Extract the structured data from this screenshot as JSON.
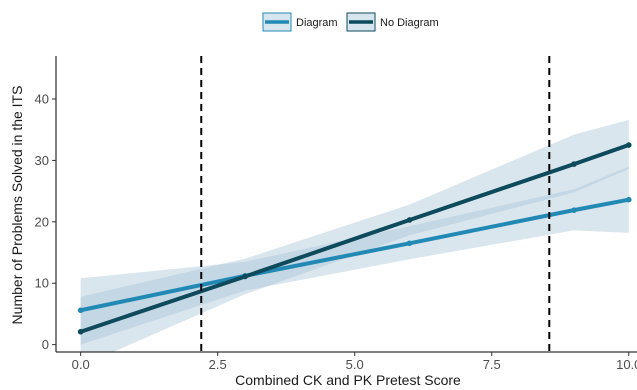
{
  "chart_data": {
    "type": "line",
    "xlabel": "Combined CK and PK Pretest Score",
    "ylabel": "Number of Problems Solved in the ITS",
    "xlim": [
      -0.45,
      10.15
    ],
    "ylim": [
      -1.2,
      47.0
    ],
    "x_ticks": [
      0.0,
      2.5,
      5.0,
      7.5,
      10.0
    ],
    "x_tick_labels": [
      "0.0",
      "2.5",
      "5.0",
      "7.5",
      "10.0"
    ],
    "y_ticks": [
      0,
      10,
      20,
      30,
      40
    ],
    "y_tick_labels": [
      "0",
      "10",
      "20",
      "30",
      "40"
    ],
    "grid": false,
    "legend_position": "top",
    "reference_lines_x": [
      2.2,
      8.55
    ],
    "series": [
      {
        "name": "Diagram",
        "color": "#2189b4",
        "x": [
          0.0,
          3.0,
          6.0,
          9.0,
          10.0
        ],
        "y": [
          5.6,
          11.2,
          16.5,
          21.9,
          23.6
        ],
        "ci_lower": [
          0.0,
          8.8,
          13.9,
          18.6,
          18.2
        ],
        "ci_upper": [
          10.8,
          13.5,
          19.3,
          25.3,
          29.0
        ]
      },
      {
        "name": "No Diagram",
        "color": "#0c4a5c",
        "x": [
          0.0,
          3.0,
          6.0,
          9.0,
          10.0
        ],
        "y": [
          2.1,
          11.1,
          20.3,
          29.4,
          32.5
        ],
        "ci_lower": [
          -3.5,
          8.2,
          17.8,
          24.8,
          28.6
        ],
        "ci_upper": [
          7.8,
          14.0,
          22.8,
          34.2,
          36.6
        ]
      }
    ]
  }
}
